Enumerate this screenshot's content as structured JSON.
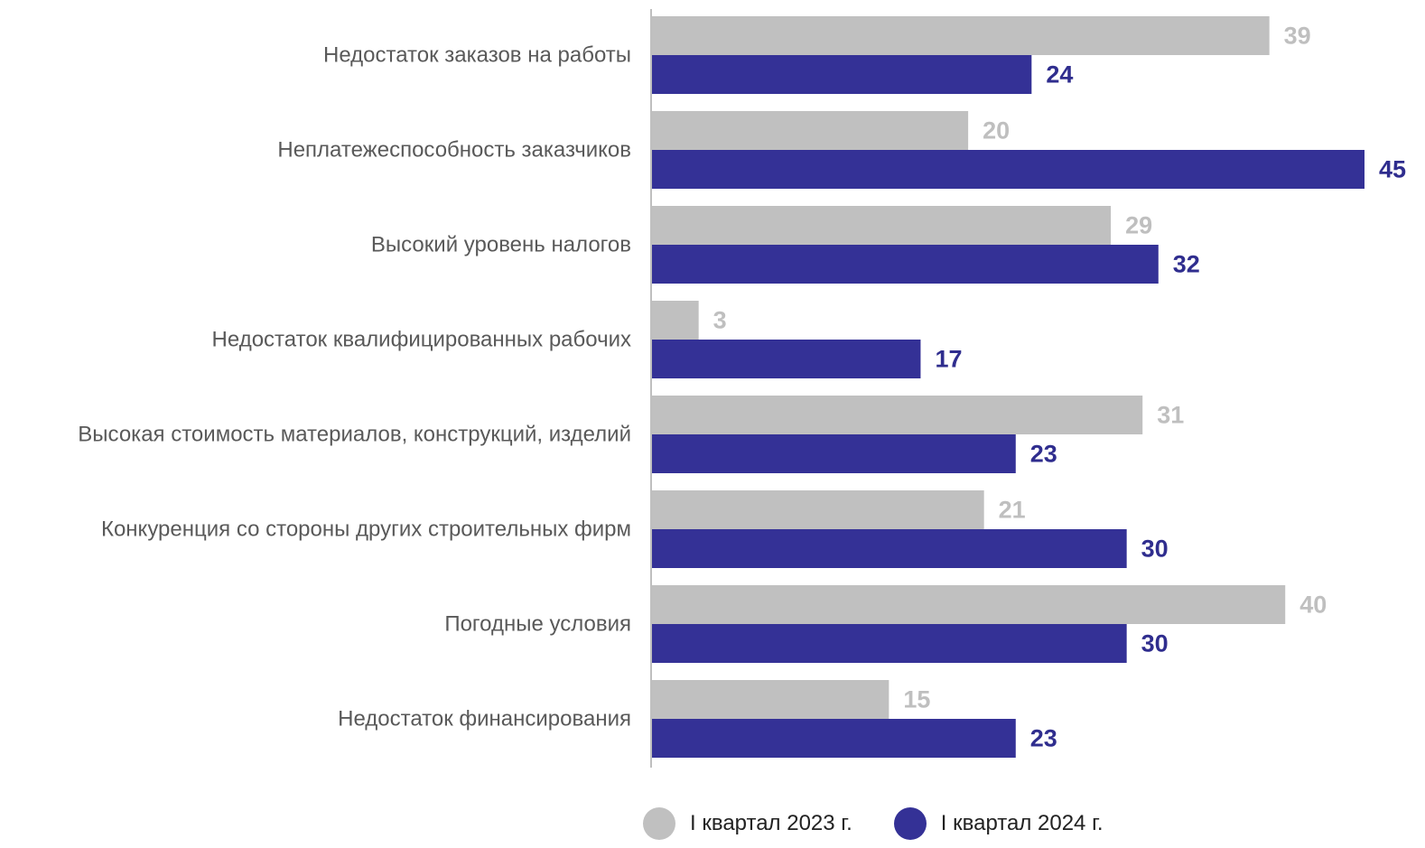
{
  "chart_data": {
    "type": "bar",
    "orientation": "horizontal",
    "categories": [
      "Недостаток заказов на работы",
      "Неплатежеспособность заказчиков",
      "Высокий уровень налогов",
      "Недостаток квалифицированных рабочих",
      "Высокая стоимость материалов, конструкций, изделий",
      "Конкуренция со стороны других строительных фирм",
      "Погодные условия",
      "Недостаток финансирования"
    ],
    "series": [
      {
        "name": "I квартал 2023 г.",
        "values": [
          39,
          20,
          29,
          3,
          31,
          21,
          40,
          15
        ],
        "color": "#c0c0c0",
        "label_color": "#bfbfbf"
      },
      {
        "name": "I квартал 2024 г.",
        "values": [
          24,
          45,
          32,
          17,
          23,
          30,
          30,
          23
        ],
        "color": "#343196",
        "label_color": "#2f2d8e"
      }
    ],
    "xlim": [
      0,
      45
    ],
    "grid": false,
    "legend_position": "bottom",
    "data_labels": true
  }
}
